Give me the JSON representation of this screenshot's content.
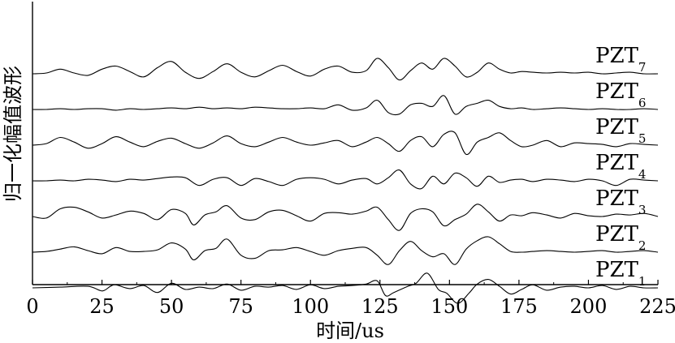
{
  "chart_data": {
    "type": "line",
    "title": "",
    "xlabel": "时间/us",
    "ylabel": "归一化幅值波形",
    "xlim": [
      0,
      225
    ],
    "xticks": [
      "0",
      "25",
      "50",
      "75",
      "100",
      "125",
      "150",
      "175",
      "200",
      "225"
    ],
    "yticks": [],
    "grid": false,
    "legend": "none",
    "series": [
      {
        "name": "PZT",
        "subscript": "1",
        "offset": 1,
        "x": [
          0,
          10,
          20,
          25,
          28,
          30,
          35,
          40,
          45,
          50,
          55,
          60,
          65,
          70,
          75,
          80,
          85,
          90,
          95,
          100,
          105,
          110,
          115,
          120,
          124,
          127,
          130,
          135,
          138,
          142,
          146,
          149,
          153,
          157,
          160,
          164,
          168,
          172,
          176,
          180,
          185,
          190,
          195,
          200,
          205,
          210,
          215,
          220,
          225
        ],
        "y": [
          0,
          0.05,
          0.1,
          -0.2,
          0.1,
          0.2,
          -0.05,
          0.15,
          -0.3,
          0.3,
          -0.1,
          0.05,
          -0.05,
          0.25,
          -0.15,
          0.1,
          0.05,
          0.15,
          -0.1,
          0.2,
          -0.05,
          0.1,
          0.15,
          0.25,
          0.45,
          -0.5,
          -0.3,
          0.1,
          0.3,
          0.95,
          -0.1,
          -0.35,
          -1.0,
          -0.35,
          0.25,
          0.55,
          0.1,
          -0.4,
          -0.1,
          0.2,
          -0.15,
          0.05,
          0.1,
          0,
          0.15,
          -0.1,
          0.1,
          0,
          0
        ]
      },
      {
        "name": "PZT",
        "subscript": "2",
        "offset": 2,
        "x": [
          0,
          5,
          10,
          15,
          20,
          25,
          30,
          35,
          40,
          45,
          50,
          55,
          58,
          62,
          66,
          70,
          75,
          80,
          85,
          90,
          95,
          100,
          105,
          110,
          115,
          120,
          124,
          128,
          132,
          136,
          140,
          144,
          148,
          152,
          156,
          160,
          164,
          168,
          172,
          176,
          180,
          185,
          190,
          195,
          200,
          205,
          210,
          215,
          220,
          225
        ],
        "y": [
          0,
          0.05,
          0.2,
          0.35,
          0.1,
          -0.1,
          0.3,
          0.05,
          0.05,
          0.15,
          0.6,
          0.2,
          -0.5,
          0.1,
          0.25,
          0.85,
          -0.2,
          -0.4,
          0.1,
          0.15,
          0.3,
          0.05,
          -0.2,
          0.1,
          0.25,
          0.3,
          -0.2,
          -0.8,
          0.1,
          0.7,
          0.1,
          -0.3,
          -0.1,
          -0.8,
          0.2,
          0.75,
          1.0,
          0.55,
          0.05,
          0,
          0.05,
          0.1,
          0.05,
          0,
          0.05,
          0.1,
          0,
          0.05,
          0.1,
          0
        ]
      },
      {
        "name": "PZT",
        "subscript": "3",
        "offset": 3,
        "x": [
          0,
          5,
          10,
          15,
          20,
          25,
          30,
          35,
          40,
          45,
          50,
          55,
          58,
          62,
          66,
          70,
          75,
          80,
          85,
          90,
          95,
          100,
          105,
          110,
          115,
          120,
          124,
          128,
          132,
          136,
          140,
          144,
          148,
          152,
          156,
          160,
          164,
          168,
          172,
          176,
          180,
          185,
          190,
          195,
          200,
          205,
          210,
          215,
          220,
          225
        ],
        "y": [
          0,
          -0.1,
          0.5,
          0.6,
          0.3,
          -0.1,
          0.1,
          0.35,
          0.2,
          -0.2,
          0.45,
          0.2,
          -0.55,
          0.1,
          0.3,
          0.7,
          -0.1,
          -0.2,
          0.3,
          0.4,
          0.05,
          -0.3,
          0.2,
          0.25,
          0.15,
          0.35,
          0.6,
          -0.2,
          -0.9,
          0.2,
          0.5,
          0.3,
          -0.6,
          -0.2,
          0.15,
          0.8,
          0.3,
          -0.3,
          0.1,
          0.05,
          0.25,
          0.1,
          -0.1,
          0.2,
          0.05,
          0,
          0.15,
          0.1,
          0.2,
          0
        ]
      },
      {
        "name": "PZT",
        "subscript": "4",
        "offset": 4,
        "x": [
          0,
          5,
          10,
          15,
          20,
          25,
          30,
          35,
          40,
          45,
          50,
          55,
          60,
          65,
          70,
          75,
          80,
          85,
          90,
          95,
          100,
          105,
          110,
          115,
          120,
          124,
          128,
          132,
          136,
          140,
          144,
          148,
          152,
          156,
          160,
          164,
          168,
          172,
          176,
          180,
          185,
          190,
          195,
          200,
          205,
          210,
          215,
          220,
          225
        ],
        "y": [
          0,
          0,
          0.05,
          0,
          0.1,
          0.05,
          -0.05,
          0.1,
          0.05,
          0.15,
          0.25,
          0.2,
          -0.3,
          0.1,
          0.2,
          -0.3,
          0.15,
          -0.05,
          -0.3,
          0.1,
          0.2,
          0.1,
          -0.2,
          0.05,
          0.15,
          -0.2,
          0.2,
          0.7,
          -0.2,
          -0.5,
          0.3,
          -0.2,
          0.5,
          0.2,
          -0.35,
          0.3,
          -0.1,
          0.05,
          0.1,
          -0.05,
          0.1,
          0.05,
          -0.05,
          0.1,
          0,
          -0.3,
          0.1,
          0.05,
          0
        ]
      },
      {
        "name": "PZT",
        "subscript": "5",
        "offset": 5,
        "x": [
          0,
          5,
          10,
          15,
          20,
          25,
          30,
          35,
          40,
          45,
          50,
          55,
          60,
          65,
          70,
          75,
          80,
          85,
          90,
          95,
          100,
          105,
          110,
          115,
          120,
          124,
          128,
          132,
          136,
          140,
          144,
          148,
          152,
          156,
          160,
          164,
          168,
          172,
          176,
          180,
          185,
          190,
          195,
          200,
          205,
          210,
          215,
          220,
          225
        ],
        "y": [
          0,
          0.1,
          0.5,
          0.2,
          -0.2,
          0.1,
          0.55,
          0.2,
          -0.1,
          0.25,
          0.45,
          0.1,
          -0.2,
          0.15,
          0.6,
          0.1,
          -0.1,
          0.2,
          0.5,
          0.2,
          0,
          0.15,
          0.3,
          -0.1,
          0.2,
          0.5,
          0.1,
          -0.4,
          0.3,
          0.55,
          -0.1,
          0.7,
          0.8,
          -0.6,
          0.2,
          0.5,
          0.8,
          0.3,
          -0.1,
          0,
          0.3,
          -0.1,
          0.15,
          0.1,
          0.05,
          -0.1,
          0.1,
          0.05,
          0
        ]
      },
      {
        "name": "PZT",
        "subscript": "6",
        "offset": 6,
        "x": [
          0,
          5,
          10,
          15,
          20,
          25,
          30,
          35,
          40,
          45,
          50,
          55,
          60,
          65,
          70,
          75,
          80,
          85,
          90,
          95,
          100,
          105,
          110,
          115,
          120,
          124,
          128,
          132,
          136,
          140,
          144,
          148,
          152,
          156,
          160,
          164,
          168,
          172,
          176,
          180,
          185,
          190,
          195,
          200,
          205,
          210,
          215,
          220,
          225
        ],
        "y": [
          0,
          0,
          0.05,
          0,
          0.05,
          0.05,
          -0.05,
          0.05,
          0,
          0.05,
          0.1,
          0.05,
          0.15,
          0.05,
          0.1,
          0.05,
          0.15,
          0.1,
          0.05,
          0.05,
          0.1,
          0.05,
          0.3,
          -0.05,
          0.1,
          0.6,
          -0.2,
          -0.3,
          0.3,
          0.4,
          0.2,
          0.9,
          -0.3,
          0.2,
          0.4,
          0.6,
          0.2,
          0.05,
          0.1,
          0,
          0.05,
          0.1,
          0.05,
          0,
          0.05,
          0,
          0,
          0.05,
          0
        ]
      },
      {
        "name": "PZT",
        "subscript": "7",
        "offset": 7,
        "x": [
          0,
          5,
          10,
          15,
          20,
          25,
          30,
          35,
          40,
          45,
          50,
          55,
          60,
          65,
          70,
          75,
          80,
          85,
          90,
          95,
          100,
          105,
          110,
          115,
          120,
          124,
          128,
          132,
          136,
          140,
          144,
          148,
          152,
          156,
          160,
          164,
          168,
          172,
          176,
          180,
          185,
          190,
          195,
          200,
          205,
          210,
          215,
          220,
          225
        ],
        "y": [
          0,
          0.05,
          0.3,
          0.05,
          -0.1,
          0.3,
          0.5,
          0.15,
          -0.2,
          0.4,
          0.8,
          0.1,
          -0.3,
          0.15,
          0.65,
          0.1,
          -0.2,
          0.2,
          0.55,
          0.15,
          -0.15,
          0.3,
          0.5,
          0.1,
          0.2,
          1.0,
          0.4,
          -0.4,
          0.2,
          0.7,
          0.3,
          1.0,
          0.5,
          -0.2,
          0.1,
          0.7,
          0.3,
          0.05,
          0.15,
          0.1,
          0.05,
          0.1,
          0.05,
          0.1,
          0,
          0.05,
          0.1,
          0,
          0
        ]
      }
    ]
  }
}
